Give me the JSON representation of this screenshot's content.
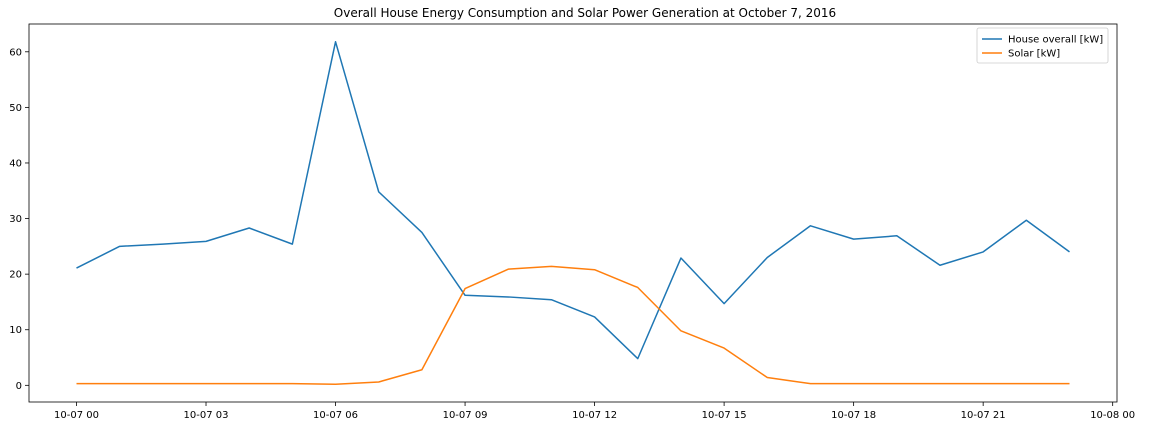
{
  "chart_data": {
    "type": "line",
    "title": "Overall House Energy Consumption and Solar Power Generation at October 7, 2016",
    "xlabel": "",
    "ylabel": "",
    "x": [
      "00:00",
      "01:00",
      "02:00",
      "03:00",
      "04:00",
      "05:00",
      "06:00",
      "07:00",
      "08:00",
      "09:00",
      "10:00",
      "11:00",
      "12:00",
      "13:00",
      "14:00",
      "15:00",
      "16:00",
      "17:00",
      "18:00",
      "19:00",
      "20:00",
      "21:00",
      "22:00",
      "23:00"
    ],
    "x_hours": [
      0,
      1,
      2,
      3,
      4,
      5,
      6,
      7,
      8,
      9,
      10,
      11,
      12,
      13,
      14,
      15,
      16,
      17,
      18,
      19,
      20,
      21,
      22,
      23
    ],
    "xlim_hours": [
      -1.1,
      24.1
    ],
    "ylim": [
      -3,
      65
    ],
    "xticks": [
      {
        "hour": 0,
        "label": "10-07 00"
      },
      {
        "hour": 3,
        "label": "10-07 03"
      },
      {
        "hour": 6,
        "label": "10-07 06"
      },
      {
        "hour": 9,
        "label": "10-07 09"
      },
      {
        "hour": 12,
        "label": "10-07 12"
      },
      {
        "hour": 15,
        "label": "10-07 15"
      },
      {
        "hour": 18,
        "label": "10-07 18"
      },
      {
        "hour": 21,
        "label": "10-07 21"
      },
      {
        "hour": 24,
        "label": "10-08 00"
      }
    ],
    "yticks": [
      0,
      10,
      20,
      30,
      40,
      50,
      60
    ],
    "grid": false,
    "legend_position": "top-right",
    "series": [
      {
        "name": "House overall [kW]",
        "color": "#1f77b4",
        "values": [
          21.1,
          25.0,
          25.4,
          25.9,
          28.3,
          25.4,
          61.8,
          34.8,
          27.5,
          16.2,
          15.9,
          15.4,
          12.3,
          4.8,
          22.9,
          14.7,
          23.0,
          28.7,
          26.3,
          26.9,
          21.6,
          24.0,
          29.7,
          24.0
        ]
      },
      {
        "name": "Solar [kW]",
        "color": "#ff7f0e",
        "values": [
          0.3,
          0.3,
          0.3,
          0.3,
          0.3,
          0.3,
          0.2,
          0.6,
          2.8,
          17.4,
          20.9,
          21.4,
          20.8,
          17.6,
          9.8,
          6.7,
          1.4,
          0.3,
          0.3,
          0.3,
          0.3,
          0.3,
          0.3,
          0.3
        ]
      }
    ]
  }
}
